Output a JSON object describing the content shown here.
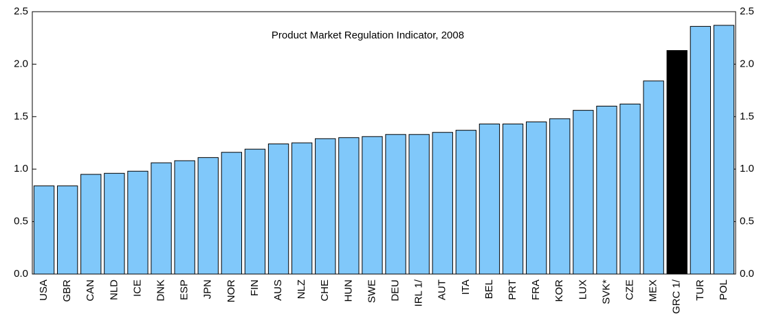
{
  "chart_data": {
    "type": "bar",
    "title": "Product Market Regulation Indicator, 2008",
    "categories": [
      "USA",
      "GBR",
      "CAN",
      "NLD",
      "ICE",
      "DNK",
      "ESP",
      "JPN",
      "NOR",
      "FIN",
      "AUS",
      "NLZ",
      "CHE",
      "HUN",
      "SWE",
      "DEU",
      "IRL 1/",
      "AUT",
      "ITA",
      "BEL",
      "PRT",
      "FRA",
      "KOR",
      "LUX",
      "SVK*",
      "CZE",
      "MEX",
      "GRC 1/",
      "TUR",
      "POL"
    ],
    "values": [
      0.84,
      0.84,
      0.95,
      0.96,
      0.98,
      1.06,
      1.08,
      1.11,
      1.16,
      1.19,
      1.24,
      1.25,
      1.29,
      1.3,
      1.31,
      1.33,
      1.33,
      1.35,
      1.37,
      1.43,
      1.43,
      1.45,
      1.48,
      1.56,
      1.6,
      1.62,
      1.84,
      2.13,
      2.36,
      2.37
    ],
    "colors": [
      "#80c8fa",
      "#80c8fa",
      "#80c8fa",
      "#80c8fa",
      "#80c8fa",
      "#80c8fa",
      "#80c8fa",
      "#80c8fa",
      "#80c8fa",
      "#80c8fa",
      "#80c8fa",
      "#80c8fa",
      "#80c8fa",
      "#80c8fa",
      "#80c8fa",
      "#80c8fa",
      "#80c8fa",
      "#80c8fa",
      "#80c8fa",
      "#80c8fa",
      "#80c8fa",
      "#80c8fa",
      "#80c8fa",
      "#80c8fa",
      "#80c8fa",
      "#80c8fa",
      "#80c8fa",
      "#000000",
      "#80c8fa",
      "#80c8fa"
    ],
    "ylim": [
      0,
      2.5
    ],
    "yticks": [
      {
        "value": 0,
        "label": "0.0"
      },
      0.5,
      {
        "value": 1,
        "label": "1.0"
      },
      1.5,
      {
        "value": 2,
        "label": "2.0"
      },
      2.5
    ],
    "y2lim": [
      0,
      2.5
    ],
    "y2ticks": [
      {
        "value": 0,
        "label": "0.0"
      },
      0.5,
      {
        "value": 1,
        "label": "1.0"
      },
      1.5,
      {
        "value": 2,
        "label": "2.0"
      },
      2.5
    ]
  }
}
